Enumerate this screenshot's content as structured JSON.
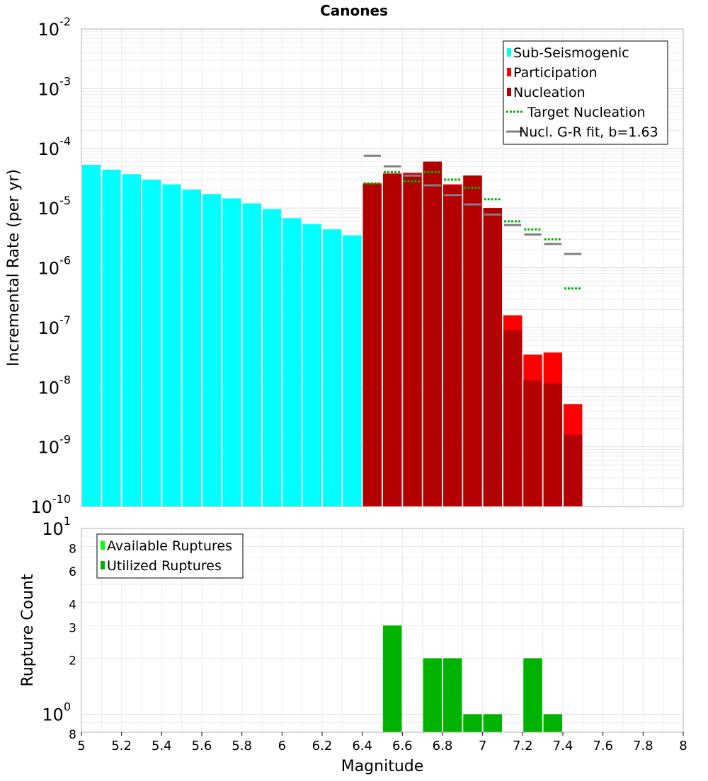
{
  "title": "Canones",
  "xlabel": "Magnitude",
  "x_ticks": [
    "5",
    "5.2",
    "5.4",
    "5.6",
    "5.8",
    "6",
    "6.2",
    "6.4",
    "6.6",
    "6.8",
    "7",
    "7.2",
    "7.4",
    "7.6",
    "7.8",
    "8"
  ],
  "chart_data": [
    {
      "type": "bar",
      "scale": "log",
      "ylabel": "Incremental Rate (per yr)",
      "xlim": [
        5,
        8
      ],
      "ylim": [
        1e-10,
        0.01
      ],
      "y_ticks": [
        {
          "base": "10",
          "exp": "-2"
        },
        {
          "base": "10",
          "exp": "-3"
        },
        {
          "base": "10",
          "exp": "-4"
        },
        {
          "base": "10",
          "exp": "-5"
        },
        {
          "base": "10",
          "exp": "-6"
        },
        {
          "base": "10",
          "exp": "-7"
        },
        {
          "base": "10",
          "exp": "-8"
        },
        {
          "base": "10",
          "exp": "-9"
        },
        {
          "base": "10",
          "exp": "-10"
        }
      ],
      "grid": true,
      "legend_position": "top-right",
      "series": [
        {
          "name": "Sub-Seismogenic",
          "kind": "bar",
          "color": "#00ffff",
          "x": [
            5.05,
            5.15,
            5.25,
            5.35,
            5.45,
            5.55,
            5.65,
            5.75,
            5.85,
            5.95,
            6.05,
            6.15,
            6.25,
            6.35
          ],
          "values": [
            5.3e-05,
            4.4e-05,
            3.7e-05,
            3e-05,
            2.5e-05,
            2.05e-05,
            1.72e-05,
            1.45e-05,
            1.2e-05,
            9.6e-06,
            6.8e-06,
            5.4e-06,
            4.4e-06,
            3.5e-06
          ]
        },
        {
          "name": "Participation",
          "kind": "bar",
          "color": "#ff0000",
          "x": [
            6.45,
            6.55,
            6.65,
            6.75,
            6.85,
            6.95,
            7.05,
            7.15,
            7.25,
            7.35,
            7.45
          ],
          "values": [
            2.6e-05,
            3.8e-05,
            3.9e-05,
            6e-05,
            2.5e-05,
            3.5e-05,
            1e-05,
            1.6e-07,
            3.5e-08,
            3.8e-08,
            5.2e-09
          ]
        },
        {
          "name": "Nucleation",
          "kind": "bar",
          "color": "#b30000",
          "x": [
            6.45,
            6.55,
            6.65,
            6.75,
            6.85,
            6.95,
            7.05,
            7.15,
            7.25,
            7.35,
            7.45
          ],
          "values": [
            2.5e-05,
            3.7e-05,
            3.8e-05,
            6e-05,
            2.4e-05,
            3.5e-05,
            1e-05,
            9e-08,
            1.3e-08,
            1.15e-08,
            1.6e-09
          ]
        },
        {
          "name": "Target Nucleation",
          "kind": "dotted-step",
          "color": "#00b300",
          "x": [
            6.45,
            6.55,
            6.65,
            6.75,
            6.85,
            6.95,
            7.05,
            7.15,
            7.25,
            7.35,
            7.45
          ],
          "values": [
            2.6e-05,
            4e-05,
            2.8e-05,
            4e-05,
            3e-05,
            2.2e-05,
            1.4e-05,
            6e-06,
            4.4e-06,
            3e-06,
            4.5e-07
          ]
        },
        {
          "name": "Nucl. G-R fit, b=1.63",
          "kind": "step",
          "color": "#808080",
          "x": [
            6.45,
            6.55,
            6.65,
            6.75,
            6.85,
            6.95,
            7.05,
            7.15,
            7.25,
            7.35,
            7.45
          ],
          "values": [
            7.5e-05,
            5e-05,
            3.5e-05,
            2.4e-05,
            1.65e-05,
            1.15e-05,
            7.8e-06,
            5.2e-06,
            3.6e-06,
            2.5e-06,
            1.7e-06
          ]
        }
      ]
    },
    {
      "type": "bar",
      "scale": "log",
      "ylabel": "Rupture Count",
      "xlim": [
        5,
        8
      ],
      "ylim": [
        0.8,
        10
      ],
      "y_ticks": [
        {
          "base": "10",
          "exp": "1"
        },
        {
          "base": "8",
          "exp": ""
        },
        {
          "base": "6",
          "exp": ""
        },
        {
          "base": "4",
          "exp": ""
        },
        {
          "base": "3",
          "exp": ""
        },
        {
          "base": "2",
          "exp": ""
        },
        {
          "base": "10",
          "exp": "0"
        },
        {
          "base": "8",
          "exp": ""
        }
      ],
      "grid": true,
      "legend_position": "top-left",
      "series": [
        {
          "name": "Available Ruptures",
          "kind": "bar",
          "color": "#00ff00",
          "x": [
            6.55,
            6.75,
            6.85,
            6.95,
            7.05,
            7.25,
            7.35
          ],
          "values": [
            3,
            2,
            2,
            1,
            1,
            2,
            1
          ]
        },
        {
          "name": "Utilized Ruptures",
          "kind": "bar",
          "color": "#00b300",
          "x": [
            6.55,
            6.75,
            6.85,
            6.95,
            7.05,
            7.25,
            7.35
          ],
          "values": [
            3,
            2,
            2,
            1,
            1,
            2,
            1
          ]
        }
      ]
    }
  ]
}
